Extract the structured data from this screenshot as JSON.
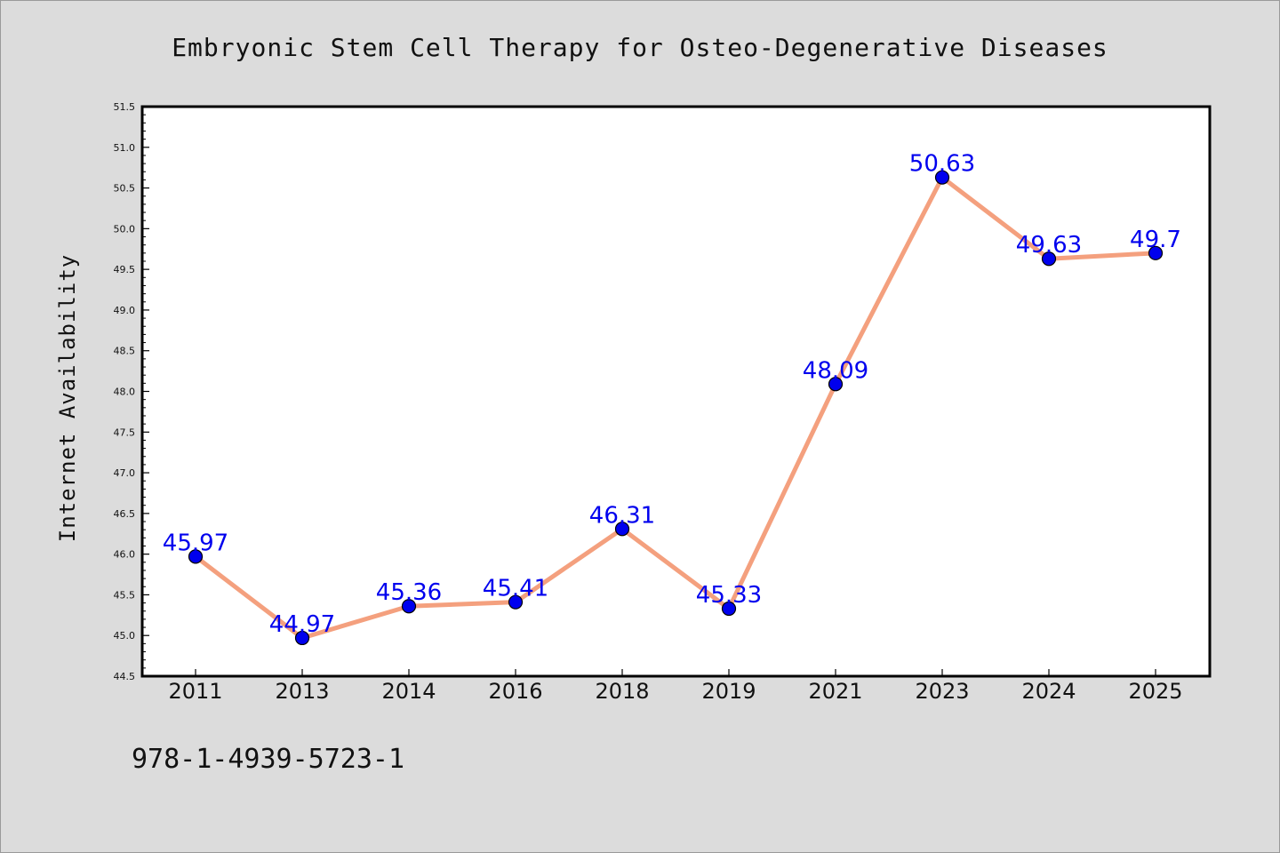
{
  "chart_data": {
    "type": "line",
    "title": "Embryonic Stem Cell Therapy for Osteo-Degenerative Diseases",
    "xlabel": "",
    "ylabel": "Internet Availability",
    "categories": [
      "2011",
      "2013",
      "2014",
      "2016",
      "2018",
      "2019",
      "2021",
      "2023",
      "2024",
      "2025"
    ],
    "values": [
      45.97,
      44.97,
      45.36,
      45.41,
      46.31,
      45.33,
      48.09,
      50.63,
      49.63,
      49.7
    ],
    "data_labels": [
      "45.97",
      "44.97",
      "45.36",
      "45.41",
      "46.31",
      "45.33",
      "48.09",
      "50.63",
      "49.63",
      "49.7"
    ],
    "ylim": [
      44.5,
      51.5
    ],
    "yticks": [
      "44.5",
      "45.0",
      "45.5",
      "46.0",
      "46.5",
      "47.0",
      "47.5",
      "48.0",
      "48.5",
      "49.0",
      "49.5",
      "50.0",
      "50.5",
      "51.0",
      "51.5"
    ],
    "grid": false,
    "line_color": "#f4a07e",
    "marker_color": "#0000ee",
    "label_color": "#0000ee"
  },
  "footer": {
    "isbn": "978-1-4939-5723-1"
  }
}
